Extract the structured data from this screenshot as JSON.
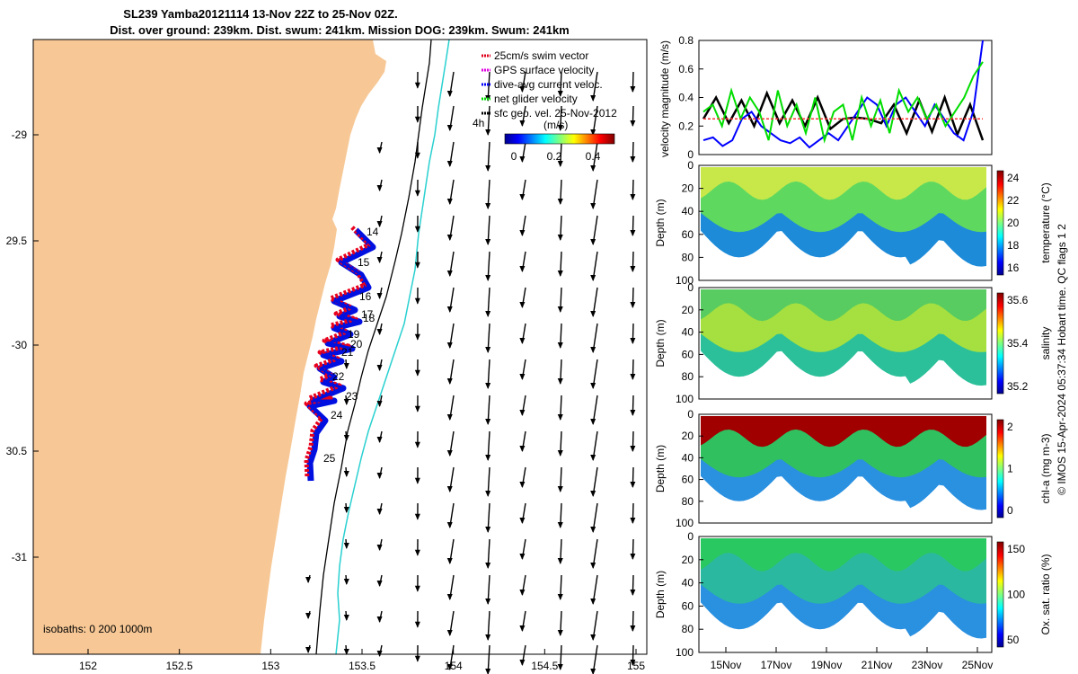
{
  "title_line1": "SL239 Yamba20121114 13-Nov 22Z to 25-Nov 02Z.",
  "title_line2": "Dist. over ground: 239km. Dist. swum: 241km. Mission DOG: 239km. Swum: 241km",
  "map": {
    "lon_ticks": [
      "152",
      "152.5",
      "153",
      "153.5",
      "154",
      "154.5",
      "155"
    ],
    "lat_ticks": [
      "-29",
      "29.5",
      "-30",
      "30.5",
      "-31"
    ],
    "isobaths_label": "isobaths: 0   200  1000m",
    "four_h_label": "4h",
    "day_labels": [
      "14",
      "15",
      "16",
      "17",
      "18",
      "19",
      "20",
      "21",
      "22",
      "23",
      "24",
      "25"
    ],
    "colorbar_label": "(m/s)",
    "colorbar_ticks": [
      "0",
      "0.2",
      "0.4"
    ],
    "legend": [
      {
        "label": "25cm/s swim vector",
        "color": "#e0001b"
      },
      {
        "label": "GPS surface velocity",
        "color": "#e000e0"
      },
      {
        "label": "dive-avg current veloc.",
        "color": "#0000ff"
      },
      {
        "label": "net glider velocity",
        "color": "#00dd00"
      },
      {
        "label": "sfc geo. vel. 25-Nov-2012",
        "color": "#000000"
      }
    ],
    "colors": {
      "land": "#f7c896",
      "isobath_200": "#000000",
      "isobath_1000": "#2ad0d0",
      "track_red": "#e8001c",
      "track_blue": "#0010e0"
    }
  },
  "chart_data": [
    {
      "type": "line",
      "ylabel": "velocity magnitude (m/s)",
      "ylim": [
        0,
        0.8
      ],
      "yticks": [
        "0",
        "0.2",
        "0.4",
        "0.6",
        "0.8"
      ],
      "series": [
        {
          "color": "#000000",
          "values": [
            0.25,
            0.4,
            0.22,
            0.38,
            0.2,
            0.43,
            0.22,
            0.38,
            0.2,
            0.4,
            0.18,
            0.25,
            0.26,
            0.25,
            0.22,
            0.35,
            0.15,
            0.38,
            0.16,
            0.4,
            0.14,
            0.35,
            0.1
          ]
        },
        {
          "color": "#0000ff",
          "values": [
            0.1,
            0.12,
            0.06,
            0.1,
            0.25,
            0.3,
            0.2,
            0.15,
            0.1,
            0.08,
            0.12,
            0.05,
            0.1,
            0.15,
            0.1,
            0.2,
            0.3,
            0.4,
            0.35,
            0.2,
            0.35,
            0.4,
            0.3,
            0.2,
            0.35,
            0.25,
            0.15,
            0.1,
            0.3,
            0.8
          ]
        },
        {
          "color": "#00dd00",
          "values": [
            0.3,
            0.35,
            0.2,
            0.45,
            0.25,
            0.4,
            0.3,
            0.1,
            0.45,
            0.2,
            0.35,
            0.15,
            0.4,
            0.1,
            0.3,
            0.35,
            0.1,
            0.4,
            0.2,
            0.38,
            0.15,
            0.45,
            0.3,
            0.4,
            0.25,
            0.35,
            0.2,
            0.3,
            0.4,
            0.55,
            0.65
          ]
        },
        {
          "color": "#ff3333",
          "values": [
            0.25,
            0.25,
            0.25,
            0.25,
            0.25,
            0.25,
            0.25,
            0.25,
            0.25,
            0.25
          ]
        }
      ]
    },
    {
      "type": "heatmap",
      "ylabel": "Depth (m)",
      "yticks": [
        "0",
        "20",
        "40",
        "60",
        "80",
        "100"
      ],
      "colorbar_label": "temperature (°C)",
      "colorbar_ticks": [
        "16",
        "18",
        "20",
        "22",
        "24"
      ],
      "top_color": "#c8e84a",
      "mid_color": "#5fd860",
      "deep_color": "#1d8bd8"
    },
    {
      "type": "heatmap",
      "ylabel": "Depth (m)",
      "yticks": [
        "0",
        "20",
        "40",
        "60",
        "80",
        "100"
      ],
      "colorbar_label": "salinity",
      "colorbar_ticks": [
        "35.2",
        "35.4",
        "35.6"
      ],
      "top_color": "#58cc60",
      "mid_color": "#a5e040",
      "deep_color": "#2bc09a"
    },
    {
      "type": "heatmap",
      "ylabel": "Depth (m)",
      "yticks": [
        "0",
        "20",
        "40",
        "60",
        "80",
        "100"
      ],
      "colorbar_label": "chl-a (mg m-3)",
      "colorbar_ticks": [
        "0",
        "1",
        "2"
      ],
      "top_color": "#a00000",
      "mid_color": "#30c060",
      "deep_color": "#2a90e0"
    },
    {
      "type": "heatmap",
      "ylabel": "Depth (m)",
      "yticks": [
        "0",
        "20",
        "40",
        "60",
        "80",
        "100"
      ],
      "colorbar_label": "Ox. sat. ratio (%)",
      "colorbar_ticks": [
        "50",
        "100",
        "150"
      ],
      "top_color": "#2ac860",
      "mid_color": "#2ab8a0",
      "deep_color": "#2a90e0",
      "x_ticks": [
        "15Nov",
        "17Nov",
        "19Nov",
        "21Nov",
        "23Nov",
        "25Nov"
      ]
    }
  ],
  "side_text": "© IMOS 15-Apr-2024 05:37:34 Hobart time. QC flags 1  2"
}
